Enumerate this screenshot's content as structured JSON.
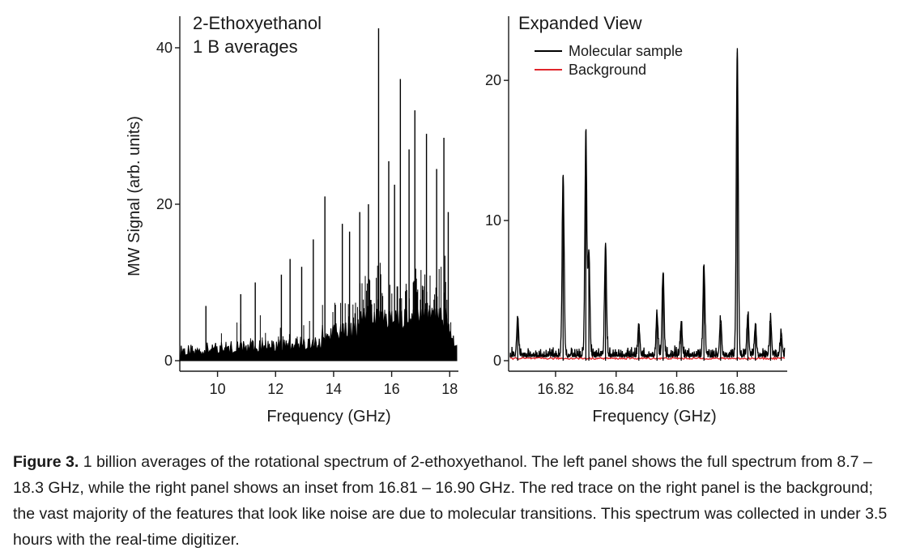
{
  "chart_data": [
    {
      "type": "line",
      "title": "2-Ethoxyethanol",
      "subtitle": "1 B averages",
      "xlabel": "Frequency (GHz)",
      "ylabel": "MW Signal (arb. units)",
      "xlim": [
        8.7,
        18.3
      ],
      "ylim": [
        0,
        43
      ],
      "xticks": [
        10,
        12,
        14,
        16,
        18
      ],
      "yticks": [
        0,
        20,
        40
      ],
      "grid": false,
      "color": "#000000",
      "series": [
        {
          "peaks": [
            {
              "x": 15.55,
              "y": 42.5
            },
            {
              "x": 16.3,
              "y": 36.0
            },
            {
              "x": 16.8,
              "y": 32.0
            },
            {
              "x": 17.8,
              "y": 28.5
            },
            {
              "x": 15.9,
              "y": 25.5
            },
            {
              "x": 16.6,
              "y": 27.0
            },
            {
              "x": 17.2,
              "y": 29.0
            },
            {
              "x": 17.55,
              "y": 24.5
            },
            {
              "x": 16.1,
              "y": 22.5
            },
            {
              "x": 13.7,
              "y": 21.0
            },
            {
              "x": 15.2,
              "y": 20.0
            },
            {
              "x": 14.9,
              "y": 19.0
            },
            {
              "x": 14.3,
              "y": 17.5
            },
            {
              "x": 13.3,
              "y": 15.5
            },
            {
              "x": 12.5,
              "y": 13.0
            },
            {
              "x": 11.3,
              "y": 10.0
            },
            {
              "x": 12.9,
              "y": 12.0
            },
            {
              "x": 17.95,
              "y": 19.0
            },
            {
              "x": 14.55,
              "y": 16.5
            },
            {
              "x": 10.8,
              "y": 8.5
            },
            {
              "x": 9.6,
              "y": 7.0
            },
            {
              "x": 12.2,
              "y": 11.0
            }
          ]
        }
      ]
    },
    {
      "type": "line",
      "title": "Expanded View",
      "xlabel": "Frequency (GHz)",
      "xlim": [
        16.8045,
        16.8965
      ],
      "ylim": [
        0,
        24
      ],
      "xticks": [
        16.82,
        16.84,
        16.86,
        16.88
      ],
      "xtick_labels": [
        "16.82",
        "16.84",
        "16.86",
        "16.88"
      ],
      "yticks": [
        0,
        10,
        20
      ],
      "grid": false,
      "legend_position": "top-left",
      "series": [
        {
          "name": "Molecular sample",
          "color": "#000000",
          "peaks": [
            {
              "x": 16.8225,
              "y": 13.0
            },
            {
              "x": 16.83,
              "y": 15.8
            },
            {
              "x": 16.831,
              "y": 7.5
            },
            {
              "x": 16.8365,
              "y": 8.0
            },
            {
              "x": 16.8555,
              "y": 6.0
            },
            {
              "x": 16.869,
              "y": 6.4
            },
            {
              "x": 16.88,
              "y": 22.0
            },
            {
              "x": 16.8075,
              "y": 2.8
            },
            {
              "x": 16.8475,
              "y": 2.2
            },
            {
              "x": 16.8535,
              "y": 3.0
            },
            {
              "x": 16.8615,
              "y": 2.4
            },
            {
              "x": 16.8745,
              "y": 2.6
            },
            {
              "x": 16.8835,
              "y": 3.0
            },
            {
              "x": 16.886,
              "y": 2.2
            },
            {
              "x": 16.891,
              "y": 2.6
            },
            {
              "x": 16.8945,
              "y": 1.6
            }
          ]
        },
        {
          "name": "Background",
          "color": "#e0262b",
          "level": 0.1
        }
      ]
    }
  ],
  "caption": {
    "label": "Figure 3.",
    "text": " 1 billion averages of the rotational spectrum of 2-ethoxyethanol.  The left panel shows the full spectrum from 8.7 – 18.3 GHz, while the right panel shows an inset from 16.81 – 16.90 GHz.  The red trace on the right panel is the background; the vast majority of the features that look like noise are due to molecular transitions.  This spectrum was collected in under 3.5 hours with the real-time digitizer."
  }
}
